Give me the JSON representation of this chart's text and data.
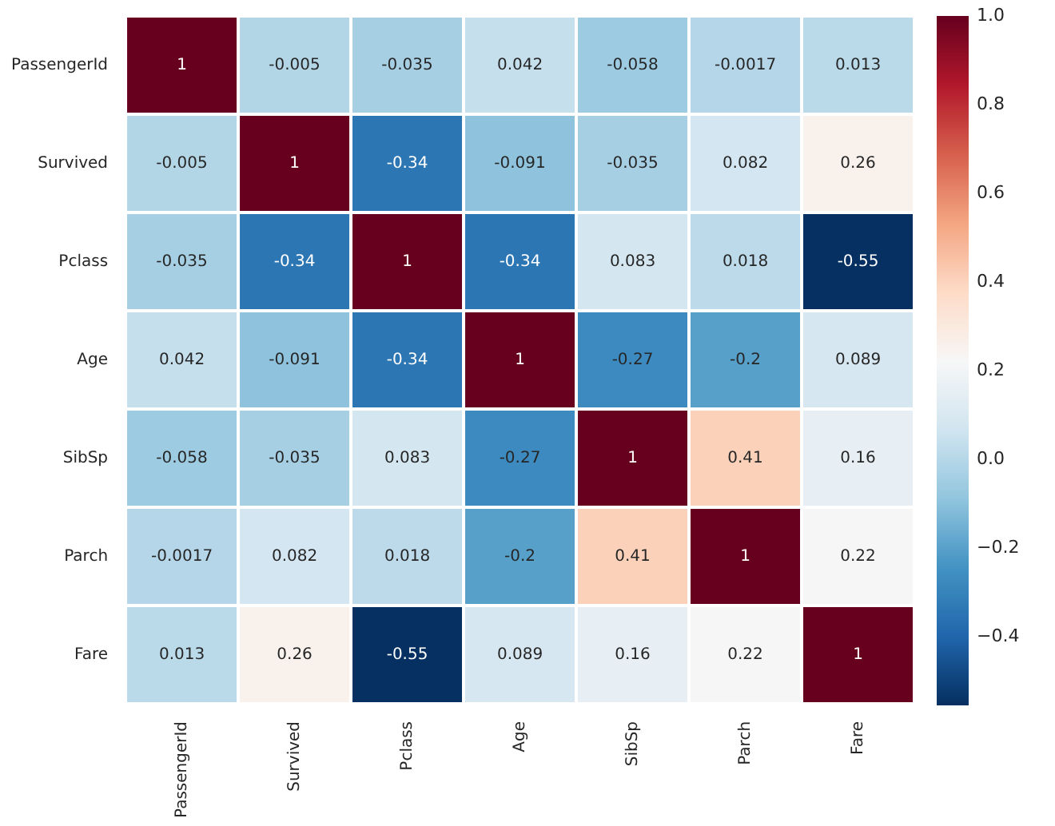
{
  "chart_data": {
    "type": "heatmap",
    "categories": [
      "PassengerId",
      "Survived",
      "Pclass",
      "Age",
      "SibSp",
      "Parch",
      "Fare"
    ],
    "y_categories": [
      "PassengerId",
      "Survived",
      "Pclass",
      "Age",
      "SibSp",
      "Parch",
      "Fare"
    ],
    "cells": [
      [
        1,
        -0.005,
        -0.035,
        0.042,
        -0.058,
        -0.0017,
        0.013
      ],
      [
        -0.005,
        1,
        -0.34,
        -0.091,
        -0.035,
        0.082,
        0.26
      ],
      [
        -0.035,
        -0.34,
        1,
        -0.34,
        0.083,
        0.018,
        -0.55
      ],
      [
        0.042,
        -0.091,
        -0.34,
        1,
        -0.27,
        -0.2,
        0.089
      ],
      [
        -0.058,
        -0.035,
        0.083,
        -0.27,
        1,
        0.41,
        0.16
      ],
      [
        -0.0017,
        0.082,
        0.018,
        -0.2,
        0.41,
        1,
        0.22
      ],
      [
        0.013,
        0.26,
        -0.55,
        0.089,
        0.16,
        0.22,
        1
      ]
    ],
    "clim": [
      -0.55,
      1
    ],
    "cticks": [
      {
        "value": -0.4,
        "label": "−0.4"
      },
      {
        "value": -0.2,
        "label": "−0.2"
      },
      {
        "value": 0,
        "label": "0.0"
      },
      {
        "value": 0.2,
        "label": "0.2"
      },
      {
        "value": 0.4,
        "label": "0.4"
      },
      {
        "value": 0.6,
        "label": "0.6"
      },
      {
        "value": 0.8,
        "label": "0.8"
      },
      {
        "value": 1,
        "label": "1.0"
      }
    ],
    "data_labels": true
  }
}
